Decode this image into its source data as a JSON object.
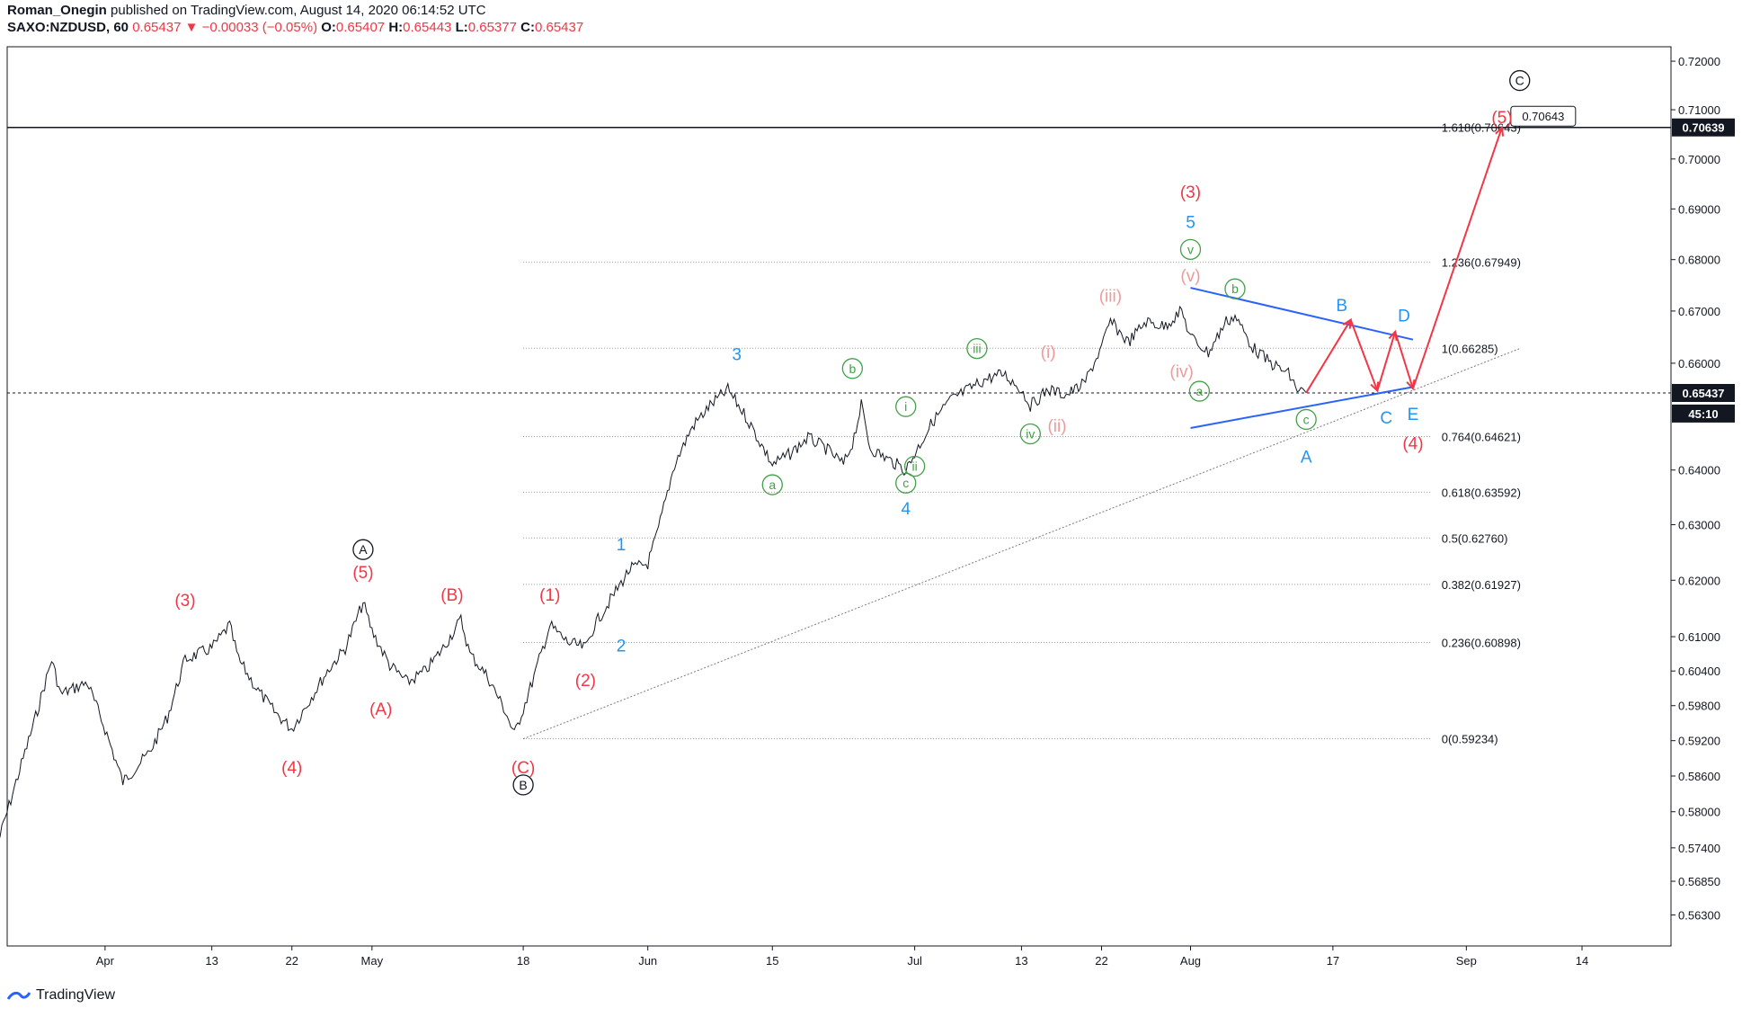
{
  "header": {
    "publisher": "Roman_Onegin",
    "published_text": "published on TradingView.com, August 14, 2020 06:14:52 UTC",
    "symbol": "SAXO:NZDUSD, 60",
    "last": "0.65437",
    "change_arrow": "▼",
    "change": "−0.00033 (−0.05%)",
    "o_label": "O:",
    "o_value": "0.65407",
    "h_label": "H:",
    "h_value": "0.65443",
    "l_label": "L:",
    "l_value": "0.65377",
    "c_label": "C:",
    "c_value": "0.65437"
  },
  "footer": {
    "brand": "TradingView",
    "logo_icon": "tradingview-logo-icon"
  },
  "chart_data": {
    "type": "line",
    "symbol": "SAXO:NZDUSD",
    "interval": "60",
    "x_range": [
      "2020-03-21",
      "2020-09-24"
    ],
    "y_range": [
      0.558,
      0.723
    ],
    "y_scale": "log",
    "x_ticks": [
      {
        "label": "Apr",
        "date": "2020-04-01"
      },
      {
        "label": "13",
        "date": "2020-04-13"
      },
      {
        "label": "22",
        "date": "2020-04-22"
      },
      {
        "label": "May",
        "date": "2020-05-01"
      },
      {
        "label": "18",
        "date": "2020-05-18"
      },
      {
        "label": "Jun",
        "date": "2020-06-01"
      },
      {
        "label": "15",
        "date": "2020-06-15"
      },
      {
        "label": "Jul",
        "date": "2020-07-01"
      },
      {
        "label": "13",
        "date": "2020-07-13"
      },
      {
        "label": "22",
        "date": "2020-07-22"
      },
      {
        "label": "Aug",
        "date": "2020-08-01"
      },
      {
        "label": "17",
        "date": "2020-08-17"
      },
      {
        "label": "Sep",
        "date": "2020-09-01"
      },
      {
        "label": "14",
        "date": "2020-09-14"
      }
    ],
    "y_ticks": [
      "0.72000",
      "0.71000",
      "0.70000",
      "0.69000",
      "0.68000",
      "0.67000",
      "0.66000",
      "0.64000",
      "0.63000",
      "0.62000",
      "0.61000",
      "0.60400",
      "0.59800",
      "0.59200",
      "0.58600",
      "0.58000",
      "0.57400",
      "0.56850",
      "0.56300"
    ],
    "price_series": {
      "name": "",
      "points": [
        [
          "2020-03-20",
          0.575
        ],
        [
          "2020-03-22",
          0.585
        ],
        [
          "2020-03-24",
          0.595
        ],
        [
          "2020-03-26",
          0.606
        ],
        [
          "2020-03-27",
          0.6
        ],
        [
          "2020-03-30",
          0.602
        ],
        [
          "2020-04-01",
          0.594
        ],
        [
          "2020-04-03",
          0.585
        ],
        [
          "2020-04-06",
          0.59
        ],
        [
          "2020-04-08",
          0.596
        ],
        [
          "2020-04-10",
          0.606
        ],
        [
          "2020-04-13",
          0.608
        ],
        [
          "2020-04-15",
          0.612
        ],
        [
          "2020-04-16",
          0.606
        ],
        [
          "2020-04-18",
          0.601
        ],
        [
          "2020-04-20",
          0.597
        ],
        [
          "2020-04-22",
          0.594
        ],
        [
          "2020-04-24",
          0.599
        ],
        [
          "2020-04-26",
          0.604
        ],
        [
          "2020-04-28",
          0.608
        ],
        [
          "2020-04-30",
          0.616
        ],
        [
          "2020-05-01",
          0.611
        ],
        [
          "2020-05-03",
          0.605
        ],
        [
          "2020-05-05",
          0.602
        ],
        [
          "2020-05-07",
          0.604
        ],
        [
          "2020-05-09",
          0.608
        ],
        [
          "2020-05-11",
          0.613
        ],
        [
          "2020-05-12",
          0.607
        ],
        [
          "2020-05-14",
          0.603
        ],
        [
          "2020-05-16",
          0.597
        ],
        [
          "2020-05-17",
          0.593
        ],
        [
          "2020-05-19",
          0.602
        ],
        [
          "2020-05-21",
          0.612
        ],
        [
          "2020-05-23",
          0.609
        ],
        [
          "2020-05-25",
          0.608
        ],
        [
          "2020-05-26",
          0.612
        ],
        [
          "2020-05-28",
          0.617
        ],
        [
          "2020-05-30",
          0.622
        ],
        [
          "2020-06-01",
          0.623
        ],
        [
          "2020-06-02",
          0.628
        ],
        [
          "2020-06-04",
          0.641
        ],
        [
          "2020-06-06",
          0.648
        ],
        [
          "2020-06-08",
          0.652
        ],
        [
          "2020-06-10",
          0.655
        ],
        [
          "2020-06-12",
          0.65
        ],
        [
          "2020-06-14",
          0.644
        ],
        [
          "2020-06-15",
          0.641
        ],
        [
          "2020-06-17",
          0.643
        ],
        [
          "2020-06-19",
          0.646
        ],
        [
          "2020-06-21",
          0.644
        ],
        [
          "2020-06-23",
          0.641
        ],
        [
          "2020-06-24",
          0.645
        ],
        [
          "2020-06-25",
          0.652
        ],
        [
          "2020-06-26",
          0.644
        ],
        [
          "2020-06-28",
          0.642
        ],
        [
          "2020-06-30",
          0.64
        ],
        [
          "2020-07-01",
          0.643
        ],
        [
          "2020-07-03",
          0.649
        ],
        [
          "2020-07-05",
          0.653
        ],
        [
          "2020-07-07",
          0.655
        ],
        [
          "2020-07-09",
          0.657
        ],
        [
          "2020-07-11",
          0.658
        ],
        [
          "2020-07-13",
          0.655
        ],
        [
          "2020-07-14",
          0.652
        ],
        [
          "2020-07-16",
          0.655
        ],
        [
          "2020-07-18",
          0.654
        ],
        [
          "2020-07-20",
          0.656
        ],
        [
          "2020-07-22",
          0.663
        ],
        [
          "2020-07-23",
          0.668
        ],
        [
          "2020-07-25",
          0.664
        ],
        [
          "2020-07-27",
          0.668
        ],
        [
          "2020-07-29",
          0.667
        ],
        [
          "2020-07-31",
          0.67
        ],
        [
          "2020-08-01",
          0.665
        ],
        [
          "2020-08-03",
          0.662
        ],
        [
          "2020-08-05",
          0.668
        ],
        [
          "2020-08-06",
          0.669
        ],
        [
          "2020-08-08",
          0.663
        ],
        [
          "2020-08-10",
          0.66
        ],
        [
          "2020-08-12",
          0.658
        ],
        [
          "2020-08-13",
          0.655
        ],
        [
          "2020-08-14",
          0.6544
        ]
      ]
    },
    "horizontal_lines": [
      {
        "name": "current-price",
        "price": "0.65437",
        "style": "dashed"
      },
      {
        "name": "target-line",
        "price": "0.70639",
        "style": "solid"
      }
    ],
    "fibonacci": {
      "start_date": "2020-05-18",
      "end_date": "2020-08-28",
      "levels": [
        {
          "label": "0(0.59234)",
          "price": 0.59234
        },
        {
          "label": "0.236(0.60898)",
          "price": 0.60898
        },
        {
          "label": "0.382(0.61927)",
          "price": 0.61927
        },
        {
          "label": "0.5(0.62760)",
          "price": 0.6276
        },
        {
          "label": "0.618(0.63592)",
          "price": 0.63592
        },
        {
          "label": "0.764(0.64621)",
          "price": 0.64621
        },
        {
          "label": "1(0.66285)",
          "price": 0.66285
        },
        {
          "label": "1.236(0.67949)",
          "price": 0.67949
        },
        {
          "label": "1.618(0.70643)",
          "price": 0.70643
        }
      ]
    },
    "trendlines": [
      {
        "name": "support-trendline",
        "color": "#787b86",
        "style": "dotted",
        "points": [
          [
            "2020-05-18",
            0.5923
          ],
          [
            "2020-09-07",
            0.6628
          ]
        ]
      },
      {
        "name": "triangle-upper-line",
        "color": "#2962ff",
        "style": "solid",
        "points": [
          [
            "2020-08-01",
            0.6745
          ],
          [
            "2020-08-26",
            0.6645
          ]
        ]
      },
      {
        "name": "triangle-lower-line",
        "color": "#2962ff",
        "style": "solid",
        "points": [
          [
            "2020-08-01",
            0.6478
          ],
          [
            "2020-08-26",
            0.6555
          ]
        ]
      }
    ],
    "projection": {
      "color": "#f23645",
      "points": [
        [
          "2020-08-14",
          0.6544
        ],
        [
          "2020-08-19",
          0.6683
        ],
        [
          "2020-08-22",
          0.6548
        ],
        [
          "2020-08-24",
          0.666
        ],
        [
          "2020-08-26",
          0.6552
        ],
        [
          "2020-09-05",
          0.7064
        ]
      ]
    },
    "price_tags": [
      {
        "text": "0.72000",
        "price": 0.72
      },
      {
        "text": "0.65437",
        "price": 0.65437,
        "bg": "#131722",
        "fg": "#ffffff"
      },
      {
        "text": "45:10",
        "price": 0.6505,
        "bg": "#131722",
        "fg": "#ffffff"
      },
      {
        "text": "0.70639",
        "price": 0.70639,
        "bg": "#131722",
        "fg": "#ffffff"
      }
    ],
    "callout": {
      "text": "0.70643",
      "date": "2020-09-06",
      "price": 0.7085
    },
    "wave_labels": [
      {
        "text": "A",
        "circled": true,
        "color": "#131722",
        "date": "2020-04-30",
        "price": 0.6255
      },
      {
        "text": "(5)",
        "color": "#f23645",
        "date": "2020-04-30",
        "price": 0.6215
      },
      {
        "text": "(3)",
        "color": "#f23645",
        "date": "2020-04-10",
        "price": 0.6165
      },
      {
        "text": "(4)",
        "color": "#f23645",
        "date": "2020-04-22",
        "price": 0.5875
      },
      {
        "text": "(A)",
        "color": "#f23645",
        "date": "2020-05-02",
        "price": 0.5975
      },
      {
        "text": "(B)",
        "color": "#f23645",
        "date": "2020-05-10",
        "price": 0.6175
      },
      {
        "text": "(C)",
        "color": "#f23645",
        "date": "2020-05-18",
        "price": 0.5875
      },
      {
        "text": "B",
        "circled": true,
        "color": "#131722",
        "date": "2020-05-18",
        "price": 0.5845
      },
      {
        "text": "(1)",
        "color": "#f23645",
        "date": "2020-05-21",
        "price": 0.6175
      },
      {
        "text": "(2)",
        "color": "#f23645",
        "date": "2020-05-25",
        "price": 0.6025
      },
      {
        "text": "1",
        "color": "#2196f3",
        "date": "2020-05-29",
        "price": 0.6265
      },
      {
        "text": "2",
        "color": "#2196f3",
        "date": "2020-05-29",
        "price": 0.6085
      },
      {
        "text": "3",
        "color": "#2196f3",
        "date": "2020-06-11",
        "price": 0.6618
      },
      {
        "text": "a",
        "circled": true,
        "color": "#43a047",
        "date": "2020-06-15",
        "price": 0.6373
      },
      {
        "text": "b",
        "circled": true,
        "color": "#43a047",
        "date": "2020-06-24",
        "price": 0.659
      },
      {
        "text": "c",
        "circled": true,
        "color": "#43a047",
        "date": "2020-06-30",
        "price": 0.6376
      },
      {
        "text": "4",
        "color": "#2196f3",
        "date": "2020-06-30",
        "price": 0.633
      },
      {
        "text": "i",
        "circled": true,
        "color": "#43a047",
        "date": "2020-06-30",
        "price": 0.6518
      },
      {
        "text": "ii",
        "circled": true,
        "color": "#43a047",
        "date": "2020-07-01",
        "price": 0.6407
      },
      {
        "text": "iii",
        "circled": true,
        "color": "#43a047",
        "date": "2020-07-08",
        "price": 0.6628
      },
      {
        "text": "iv",
        "circled": true,
        "color": "#43a047",
        "date": "2020-07-14",
        "price": 0.6467
      },
      {
        "text": "(i)",
        "color": "#ef9a9a",
        "date": "2020-07-16",
        "price": 0.6622
      },
      {
        "text": "(ii)",
        "color": "#ef9a9a",
        "date": "2020-07-17",
        "price": 0.6483
      },
      {
        "text": "(iii)",
        "color": "#ef9a9a",
        "date": "2020-07-23",
        "price": 0.673
      },
      {
        "text": "(iv)",
        "color": "#ef9a9a",
        "date": "2020-07-31",
        "price": 0.6585
      },
      {
        "text": "(v)",
        "color": "#ef9a9a",
        "date": "2020-08-01",
        "price": 0.677
      },
      {
        "text": "v",
        "circled": true,
        "color": "#43a047",
        "date": "2020-08-01",
        "price": 0.682
      },
      {
        "text": "5",
        "color": "#2196f3",
        "date": "2020-08-01",
        "price": 0.6875
      },
      {
        "text": "(3)",
        "color": "#f23645",
        "date": "2020-08-01",
        "price": 0.6935
      },
      {
        "text": "a",
        "circled": true,
        "color": "#43a047",
        "date": "2020-08-02",
        "price": 0.6547
      },
      {
        "text": "b",
        "circled": true,
        "color": "#43a047",
        "date": "2020-08-06",
        "price": 0.6743
      },
      {
        "text": "c",
        "circled": true,
        "color": "#43a047",
        "date": "2020-08-14",
        "price": 0.6494
      },
      {
        "text": "A",
        "color": "#2196f3",
        "date": "2020-08-14",
        "price": 0.6425
      },
      {
        "text": "B",
        "color": "#2196f3",
        "date": "2020-08-18",
        "price": 0.6712
      },
      {
        "text": "C",
        "color": "#2196f3",
        "date": "2020-08-23",
        "price": 0.6498
      },
      {
        "text": "D",
        "color": "#2196f3",
        "date": "2020-08-25",
        "price": 0.6692
      },
      {
        "text": "E",
        "color": "#2196f3",
        "date": "2020-08-26",
        "price": 0.6505
      },
      {
        "text": "(4)",
        "color": "#f23645",
        "date": "2020-08-26",
        "price": 0.645
      },
      {
        "text": "(5)",
        "color": "#f23645",
        "date": "2020-09-05",
        "price": 0.7085
      },
      {
        "text": "C",
        "circled": true,
        "color": "#131722",
        "date": "2020-09-07",
        "price": 0.716
      }
    ]
  }
}
